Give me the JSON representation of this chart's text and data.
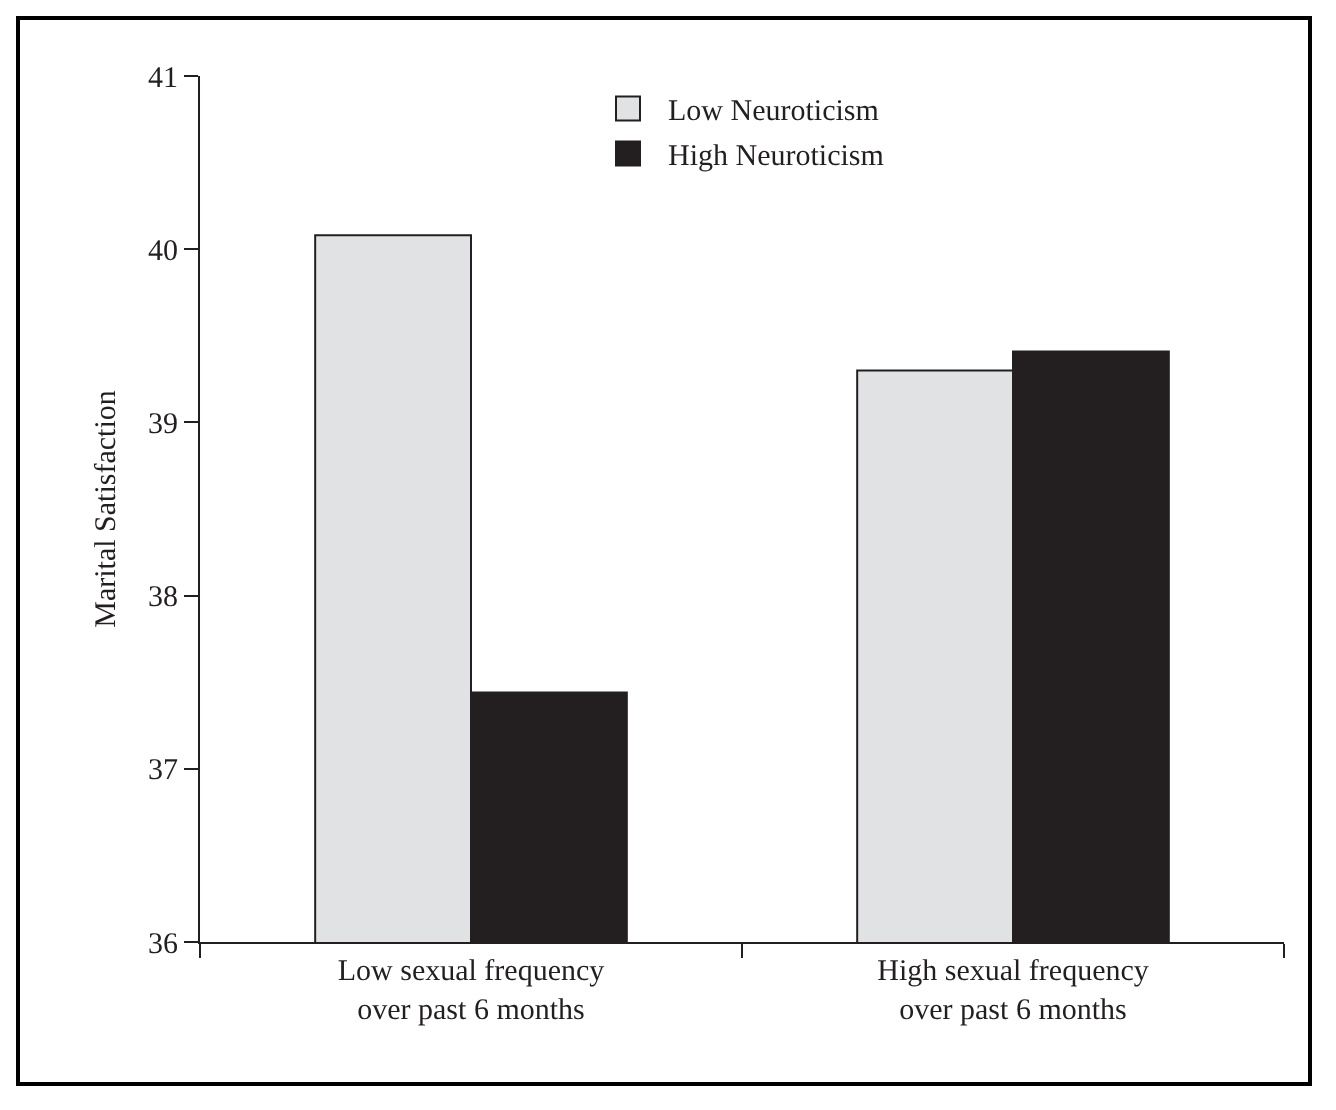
{
  "chart_data": {
    "type": "bar",
    "ylabel": "Marital Satisfaction",
    "categories": [
      "Low sexual frequency\nover past 6 months",
      "High sexual frequency\nover past 6 months"
    ],
    "series": [
      {
        "name": "Low Neuroticism",
        "color": "#e1e2e4",
        "values": [
          40.08,
          39.3
        ]
      },
      {
        "name": "High Neuroticism",
        "color": "#231f20",
        "values": [
          37.44,
          39.41
        ]
      }
    ],
    "ylim": [
      36,
      41
    ],
    "yticks": [
      36,
      37,
      38,
      39,
      40,
      41
    ],
    "grid": false,
    "legend": "top"
  }
}
